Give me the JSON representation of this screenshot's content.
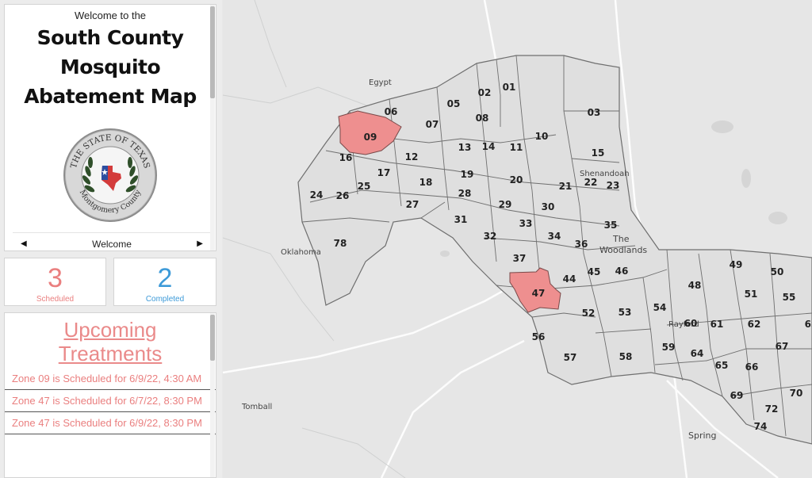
{
  "sidebar": {
    "welcome_sub": "Welcome to the",
    "title_lines": [
      "South County",
      "Mosquito",
      "Abatement Map"
    ],
    "seal": {
      "top_text": "THE STATE OF TEXAS",
      "bottom_text": "Montgomery County"
    },
    "nav": {
      "label": "Welcome",
      "prev": "◀",
      "next": "▶"
    }
  },
  "stats": {
    "scheduled": {
      "value": "3",
      "label": "Scheduled",
      "color": "#ea7f7f"
    },
    "completed": {
      "value": "2",
      "label": "Completed",
      "color": "#3d9ad8"
    }
  },
  "upcoming": {
    "title_lines": [
      "Upcoming",
      "Treatments"
    ],
    "items": [
      "Zone 09 is Scheduled for 6/9/22, 4:30 AM",
      "Zone 47 is Scheduled for 6/7/22, 8:30 PM",
      "Zone 47 is Scheduled for 6/9/22, 8:30 PM"
    ]
  },
  "map": {
    "highlight_color": "#ee8f8f",
    "highlighted_zones": [
      "09",
      "47"
    ],
    "places": [
      "Egypt",
      "Shenandoah",
      "The",
      "Woodlands",
      "Oklahoma",
      "Rayford",
      "Tomball",
      "Spring"
    ],
    "zones": [
      "01",
      "02",
      "03",
      "05",
      "06",
      "07",
      "08",
      "09",
      "10",
      "11",
      "12",
      "13",
      "14",
      "15",
      "16",
      "17",
      "18",
      "19",
      "20",
      "21",
      "22",
      "23",
      "24",
      "25",
      "26",
      "27",
      "28",
      "29",
      "30",
      "31",
      "32",
      "33",
      "34",
      "35",
      "36",
      "37",
      "44",
      "45",
      "46",
      "47",
      "48",
      "49",
      "50",
      "51",
      "52",
      "53",
      "54",
      "55",
      "56",
      "57",
      "58",
      "59",
      "60",
      "61",
      "62",
      "63",
      "64",
      "65",
      "66",
      "67",
      "69",
      "70",
      "72",
      "74",
      "78"
    ]
  }
}
